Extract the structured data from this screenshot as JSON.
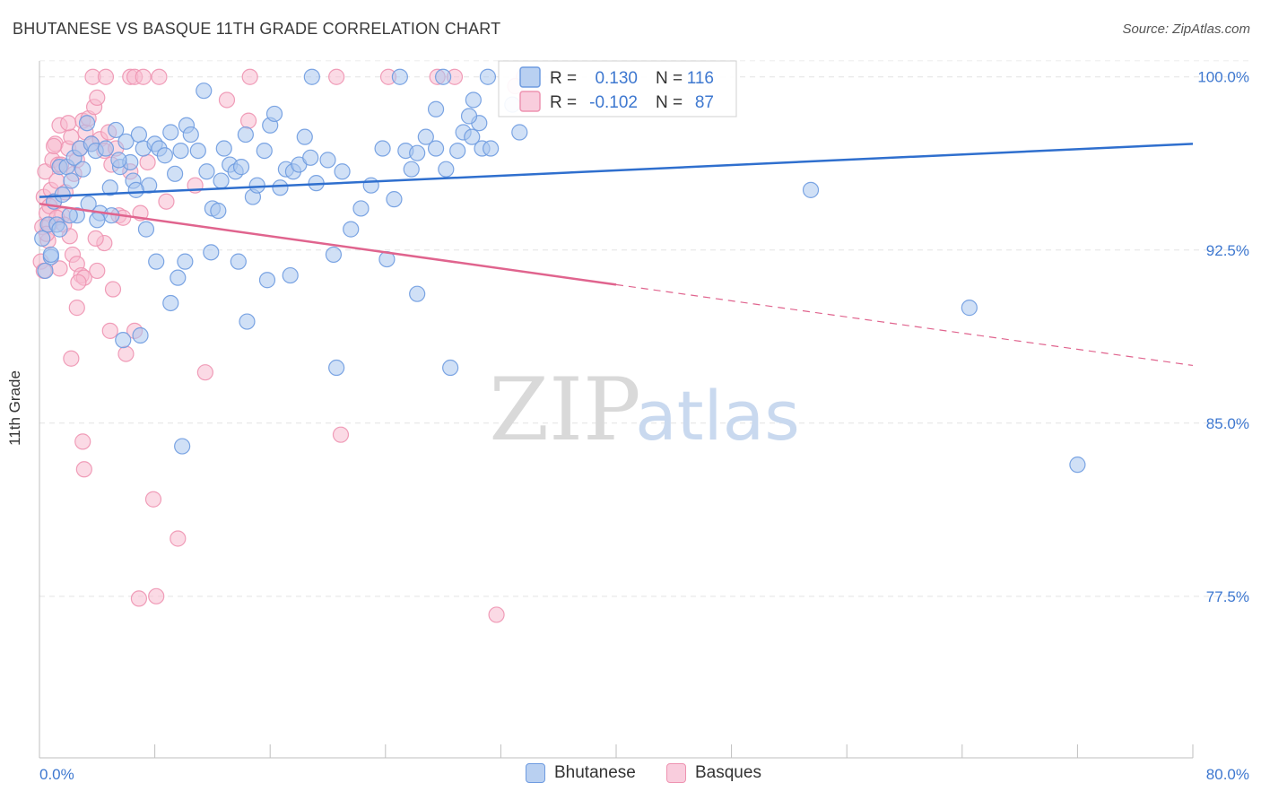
{
  "header": {
    "title": "BHUTANESE VS BASQUE 11TH GRADE CORRELATION CHART",
    "source": "Source: ZipAtlas.com"
  },
  "watermark": {
    "part1": "ZIP",
    "part2": "atlas"
  },
  "colors": {
    "blue_fill": "#a9c6ef",
    "blue_stroke": "#6e9be0",
    "blue_line": "#2f6fce",
    "pink_fill": "#f7bcd0",
    "pink_stroke": "#ee93b1",
    "pink_line": "#e0648e",
    "tick_label": "#3e78d0",
    "grid": "#e3e3e3"
  },
  "legend": {
    "rows": [
      {
        "r_label": "R =",
        "r_value": "0.130",
        "n_label": "N =",
        "n_value": "116"
      },
      {
        "r_label": "R =",
        "r_value": "-0.102",
        "n_label": "N =",
        "n_value": "87"
      }
    ]
  },
  "chart_data": {
    "type": "scatter",
    "title": "BHUTANESE VS BASQUE 11TH GRADE CORRELATION CHART",
    "xlabel": "",
    "ylabel": "11th Grade",
    "xlim": [
      0,
      80
    ],
    "ylim": [
      70.5,
      101
    ],
    "x_tick_labels": [
      "0.0%",
      "80.0%"
    ],
    "y_ticks": [
      77.5,
      85.0,
      92.5,
      100.0
    ],
    "y_tick_labels": [
      "77.5%",
      "85.0%",
      "92.5%",
      "100.0%"
    ],
    "grid": true,
    "legend_position": "top-center",
    "series": [
      {
        "name": "Bhutanese",
        "color": "#a9c6ef",
        "R": 0.13,
        "N": 116,
        "trend": {
          "x": [
            0,
            80
          ],
          "y": [
            94.8,
            97.1
          ],
          "dashed_from": null
        },
        "points": [
          [
            0.2,
            93.0
          ],
          [
            0.4,
            91.6
          ],
          [
            0.6,
            93.6
          ],
          [
            0.8,
            92.2
          ],
          [
            1.0,
            94.6
          ],
          [
            1.2,
            93.6
          ],
          [
            1.4,
            96.1
          ],
          [
            1.6,
            94.9
          ],
          [
            1.9,
            96.1
          ],
          [
            2.2,
            95.5
          ],
          [
            2.4,
            96.5
          ],
          [
            2.8,
            96.9
          ],
          [
            3.0,
            96.0
          ],
          [
            3.3,
            98.0
          ],
          [
            3.6,
            97.1
          ],
          [
            3.9,
            96.8
          ],
          [
            2.6,
            94.0
          ],
          [
            4.2,
            94.1
          ],
          [
            4.6,
            96.9
          ],
          [
            4.9,
            95.2
          ],
          [
            5.3,
            97.7
          ],
          [
            5.6,
            96.1
          ],
          [
            6.0,
            97.2
          ],
          [
            6.3,
            96.3
          ],
          [
            6.5,
            95.5
          ],
          [
            6.9,
            97.5
          ],
          [
            7.2,
            96.9
          ],
          [
            7.6,
            95.3
          ],
          [
            8.0,
            97.1
          ],
          [
            8.3,
            96.9
          ],
          [
            8.7,
            96.6
          ],
          [
            9.1,
            97.6
          ],
          [
            9.4,
            95.8
          ],
          [
            9.8,
            96.8
          ],
          [
            10.2,
            97.9
          ],
          [
            10.5,
            97.5
          ],
          [
            11.0,
            96.8
          ],
          [
            11.4,
            99.4
          ],
          [
            11.6,
            95.9
          ],
          [
            12.0,
            94.3
          ],
          [
            12.4,
            94.2
          ],
          [
            12.8,
            96.9
          ],
          [
            13.2,
            96.2
          ],
          [
            13.6,
            95.9
          ],
          [
            14.0,
            96.1
          ],
          [
            14.3,
            97.5
          ],
          [
            14.8,
            94.8
          ],
          [
            15.1,
            95.3
          ],
          [
            15.6,
            96.8
          ],
          [
            16.0,
            97.9
          ],
          [
            16.3,
            98.4
          ],
          [
            16.7,
            95.2
          ],
          [
            17.1,
            96.0
          ],
          [
            17.6,
            95.9
          ],
          [
            18.0,
            96.2
          ],
          [
            18.4,
            97.4
          ],
          [
            18.8,
            96.5
          ],
          [
            19.2,
            95.4
          ],
          [
            20.0,
            96.4
          ],
          [
            21.0,
            95.9
          ],
          [
            21.6,
            93.4
          ],
          [
            22.3,
            94.3
          ],
          [
            23.0,
            95.3
          ],
          [
            23.8,
            96.9
          ],
          [
            24.6,
            94.7
          ],
          [
            25.4,
            96.8
          ],
          [
            25.8,
            96.0
          ],
          [
            26.2,
            96.7
          ],
          [
            26.8,
            97.4
          ],
          [
            27.5,
            96.9
          ],
          [
            28.2,
            96.0
          ],
          [
            29.0,
            96.8
          ],
          [
            29.4,
            97.6
          ],
          [
            30.0,
            97.4
          ],
          [
            30.7,
            96.9
          ],
          [
            31.3,
            96.9
          ],
          [
            5.0,
            94.0
          ],
          [
            4.0,
            93.8
          ],
          [
            7.4,
            93.4
          ],
          [
            10.1,
            92.0
          ],
          [
            11.9,
            92.4
          ],
          [
            9.6,
            91.3
          ],
          [
            8.1,
            92.0
          ],
          [
            15.8,
            91.2
          ],
          [
            17.4,
            91.4
          ],
          [
            20.4,
            92.3
          ],
          [
            24.1,
            92.1
          ],
          [
            26.2,
            90.6
          ],
          [
            9.1,
            90.2
          ],
          [
            14.4,
            89.4
          ],
          [
            7.0,
            88.8
          ],
          [
            5.8,
            88.6
          ],
          [
            20.6,
            87.4
          ],
          [
            28.5,
            87.4
          ],
          [
            9.9,
            84.0
          ],
          [
            53.5,
            95.1
          ],
          [
            64.5,
            90.0
          ],
          [
            72.0,
            83.2
          ],
          [
            28.0,
            100.0
          ],
          [
            25.0,
            100.0
          ],
          [
            18.9,
            100.0
          ],
          [
            31.1,
            100.0
          ],
          [
            27.5,
            98.6
          ],
          [
            30.5,
            98.0
          ],
          [
            30.1,
            99.0
          ],
          [
            32.8,
            98.8
          ],
          [
            33.3,
            97.6
          ],
          [
            29.8,
            98.3
          ],
          [
            0.8,
            92.3
          ],
          [
            1.4,
            93.4
          ],
          [
            2.1,
            94.0
          ],
          [
            3.4,
            94.5
          ],
          [
            5.5,
            96.4
          ],
          [
            6.7,
            95.1
          ],
          [
            12.6,
            95.5
          ],
          [
            13.8,
            92.0
          ]
        ]
      },
      {
        "name": "Basques",
        "color": "#f7bcd0",
        "R": -0.102,
        "N": 87,
        "trend": {
          "x": [
            0,
            80
          ],
          "y": [
            94.5,
            87.5
          ],
          "dashed_from": 40
        },
        "points": [
          [
            0.1,
            92.0
          ],
          [
            0.2,
            93.5
          ],
          [
            0.3,
            94.8
          ],
          [
            0.4,
            95.9
          ],
          [
            0.5,
            94.1
          ],
          [
            0.6,
            92.9
          ],
          [
            0.7,
            93.6
          ],
          [
            0.8,
            95.1
          ],
          [
            0.9,
            96.4
          ],
          [
            1.0,
            94.6
          ],
          [
            1.1,
            97.1
          ],
          [
            1.2,
            95.5
          ],
          [
            1.3,
            96.2
          ],
          [
            1.4,
            97.9
          ],
          [
            1.5,
            96.2
          ],
          [
            1.6,
            94.0
          ],
          [
            1.8,
            95.0
          ],
          [
            2.0,
            96.9
          ],
          [
            2.2,
            97.4
          ],
          [
            2.4,
            95.8
          ],
          [
            2.6,
            96.4
          ],
          [
            2.8,
            96.9
          ],
          [
            3.0,
            98.1
          ],
          [
            3.2,
            97.6
          ],
          [
            3.4,
            98.2
          ],
          [
            3.6,
            97.1
          ],
          [
            3.8,
            98.7
          ],
          [
            4.0,
            99.1
          ],
          [
            4.2,
            97.3
          ],
          [
            4.5,
            96.8
          ],
          [
            4.8,
            97.6
          ],
          [
            5.0,
            96.2
          ],
          [
            5.3,
            96.9
          ],
          [
            1.0,
            97.0
          ],
          [
            2.0,
            98.0
          ],
          [
            0.5,
            93.2
          ],
          [
            0.7,
            94.4
          ],
          [
            1.2,
            93.9
          ],
          [
            1.7,
            93.6
          ],
          [
            2.1,
            93.1
          ],
          [
            2.3,
            92.3
          ],
          [
            2.6,
            91.9
          ],
          [
            2.9,
            91.4
          ],
          [
            3.1,
            91.3
          ],
          [
            4.0,
            91.6
          ],
          [
            5.1,
            90.8
          ],
          [
            2.6,
            90.0
          ],
          [
            4.9,
            89.0
          ],
          [
            6.6,
            89.0
          ],
          [
            6.0,
            88.0
          ],
          [
            2.2,
            87.8
          ],
          [
            11.5,
            87.2
          ],
          [
            3.0,
            84.2
          ],
          [
            3.1,
            83.0
          ],
          [
            7.9,
            81.7
          ],
          [
            9.6,
            80.0
          ],
          [
            6.9,
            77.4
          ],
          [
            8.1,
            77.5
          ],
          [
            31.7,
            76.7
          ],
          [
            20.9,
            84.5
          ],
          [
            4.5,
            92.8
          ],
          [
            5.5,
            94.0
          ],
          [
            7.0,
            94.1
          ],
          [
            8.8,
            94.6
          ],
          [
            10.8,
            95.3
          ],
          [
            6.3,
            95.9
          ],
          [
            7.5,
            96.3
          ],
          [
            13.0,
            99.0
          ],
          [
            14.5,
            98.1
          ],
          [
            3.7,
            100.0
          ],
          [
            4.6,
            100.0
          ],
          [
            6.3,
            100.0
          ],
          [
            6.6,
            100.0
          ],
          [
            7.2,
            100.0
          ],
          [
            8.3,
            100.0
          ],
          [
            14.6,
            100.0
          ],
          [
            20.6,
            100.0
          ],
          [
            24.2,
            100.0
          ],
          [
            27.6,
            100.0
          ],
          [
            28.8,
            100.0
          ],
          [
            33.6,
            100.0
          ],
          [
            33.0,
            99.6
          ],
          [
            0.3,
            91.6
          ],
          [
            1.4,
            91.7
          ],
          [
            2.7,
            91.1
          ],
          [
            3.9,
            93.0
          ],
          [
            5.8,
            93.9
          ]
        ]
      }
    ]
  }
}
